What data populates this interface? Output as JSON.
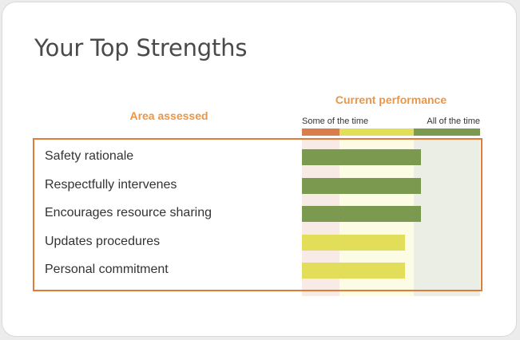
{
  "page": {
    "title": "Your Top Strengths"
  },
  "chart_data": {
    "type": "bar",
    "orientation": "horizontal",
    "category_header": "Area assessed",
    "value_header": "Current performance",
    "scale_labels": {
      "low": "Some of the time",
      "high": "All of the time"
    },
    "scale_range": [
      0,
      100
    ],
    "zones": [
      {
        "from": 0,
        "to": 21,
        "strip_color": "#d97d4a",
        "band_color": "#f8ebe6"
      },
      {
        "from": 21,
        "to": 63,
        "strip_color": "#e2de5a",
        "band_color": "#fcfbe3"
      },
      {
        "from": 63,
        "to": 100,
        "strip_color": "#7b9a4f",
        "band_color": "#ebeee4"
      }
    ],
    "categories": [
      "Safety rationale",
      "Respectfully intervenes",
      "Encourages resource sharing",
      "Updates procedures",
      "Personal commitment"
    ],
    "values": [
      67,
      67,
      67,
      58,
      58
    ],
    "bar_colors": [
      "#7b9a4f",
      "#7b9a4f",
      "#7b9a4f",
      "#e2de5a",
      "#e2de5a"
    ]
  }
}
